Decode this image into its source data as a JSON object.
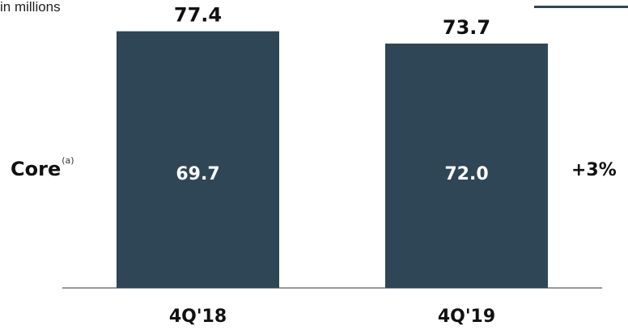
{
  "unit_label": "in millions",
  "row_label": "Core",
  "row_label_footnote": "(a)",
  "change_label": "+3%",
  "colors": {
    "bar": "#2e4655",
    "axis": "#777777",
    "text": "#111111",
    "inner_text": "#ffffff",
    "accent": "#2e4655"
  },
  "chart_data": {
    "type": "bar",
    "categories": [
      "4Q'18",
      "4Q'19"
    ],
    "values": [
      77.4,
      73.7
    ],
    "segment_labels": [
      "69.7",
      "72.0"
    ],
    "value_labels": [
      "77.4",
      "73.7"
    ],
    "ylim": [
      0,
      80
    ]
  }
}
